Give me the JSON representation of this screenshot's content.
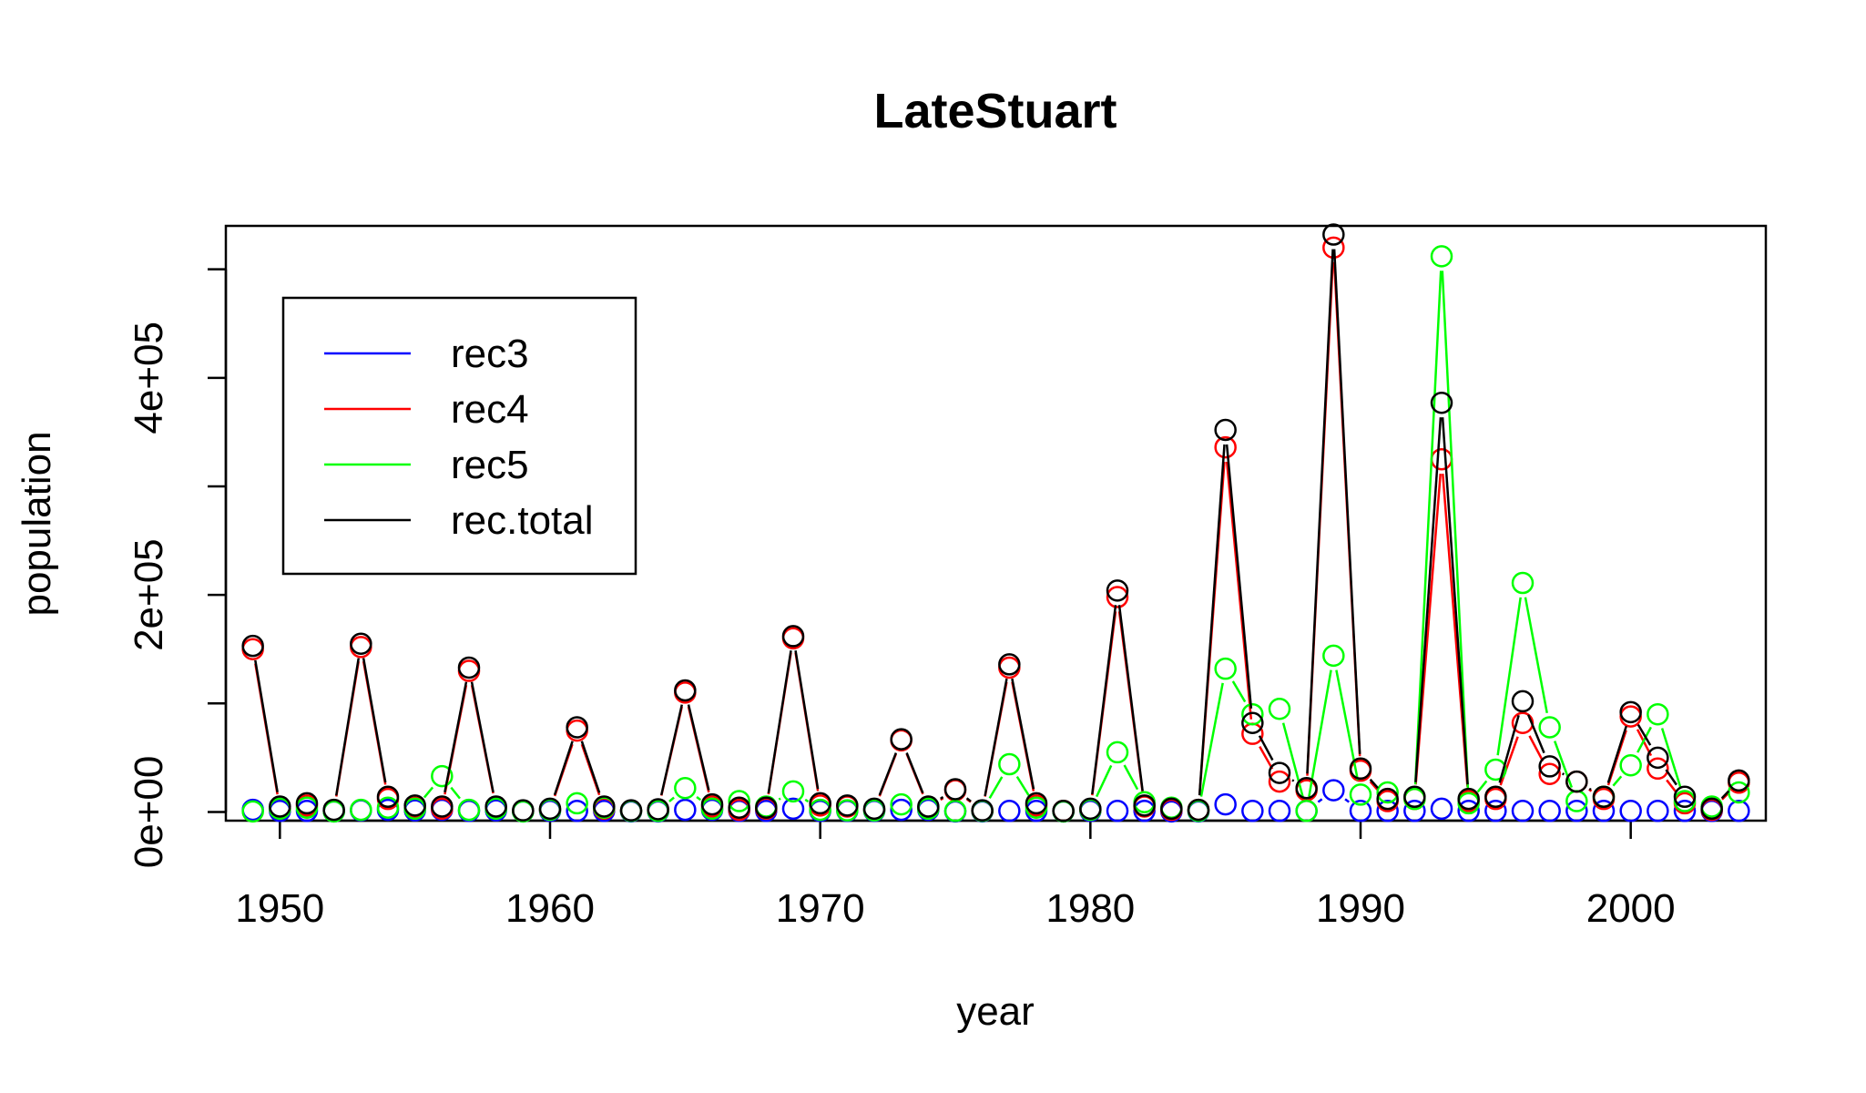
{
  "chart_data": {
    "type": "line",
    "title": "LateStuart",
    "xlabel": "year",
    "ylabel": "population",
    "xlim": [
      1948,
      2005
    ],
    "ylim": [
      -8000,
      540000
    ],
    "xticks": [
      1950,
      1960,
      1970,
      1980,
      1990,
      2000
    ],
    "xtick_labels": [
      "1950",
      "1960",
      "1970",
      "1980",
      "1990",
      "2000"
    ],
    "yticks": [
      0,
      100000,
      200000,
      300000,
      400000,
      500000
    ],
    "ytick_labels": [
      "0e+00",
      "",
      "2e+05",
      "",
      "4e+05",
      ""
    ],
    "grid": false,
    "legend_position": "top-left",
    "x": [
      1949,
      1950,
      1951,
      1952,
      1953,
      1954,
      1955,
      1956,
      1957,
      1958,
      1959,
      1960,
      1961,
      1962,
      1963,
      1964,
      1965,
      1966,
      1967,
      1968,
      1969,
      1970,
      1971,
      1972,
      1973,
      1974,
      1975,
      1976,
      1977,
      1978,
      1979,
      1980,
      1981,
      1982,
      1983,
      1984,
      1985,
      1986,
      1987,
      1988,
      1989,
      1990,
      1991,
      1992,
      1993,
      1994,
      1995,
      1996,
      1997,
      1998,
      1999,
      2000,
      2001,
      2002,
      2003,
      2004
    ],
    "series": [
      {
        "name": "rec3",
        "color": "#0000ff",
        "values": [
          2000,
          1000,
          1000,
          500,
          1500,
          2000,
          1500,
          2000,
          1000,
          1500,
          500,
          1000,
          1000,
          1000,
          500,
          500,
          2000,
          2000,
          1000,
          1000,
          3000,
          1000,
          1000,
          1000,
          2000,
          2000,
          500,
          500,
          1000,
          1000,
          500,
          1000,
          1000,
          1000,
          500,
          500,
          7000,
          1000,
          1000,
          1000,
          20000,
          1000,
          1000,
          1000,
          3000,
          1000,
          1000,
          1000,
          1000,
          1000,
          1000,
          1000,
          1000,
          1000,
          1000,
          1000
        ]
      },
      {
        "name": "rec4",
        "color": "#ff0000",
        "values": [
          150000,
          3000,
          6000,
          1000,
          152000,
          12000,
          4000,
          3000,
          130000,
          4000,
          1000,
          2000,
          75000,
          3000,
          1000,
          2000,
          110000,
          5000,
          2000,
          3000,
          160000,
          6000,
          5000,
          2000,
          66000,
          4000,
          20000,
          1000,
          133000,
          6000,
          1000,
          2000,
          198000,
          5000,
          2000,
          2000,
          336000,
          72000,
          28000,
          20000,
          520000,
          38000,
          10000,
          12000,
          325000,
          10000,
          12000,
          82000,
          35000,
          28000,
          12000,
          88000,
          40000,
          8000,
          2000,
          27000
        ]
      },
      {
        "name": "rec5",
        "color": "#00ff00",
        "values": [
          500,
          3000,
          4000,
          500,
          2000,
          4000,
          3000,
          33000,
          2000,
          3000,
          500,
          2000,
          8000,
          4000,
          1000,
          1000,
          22000,
          3000,
          10000,
          5000,
          19000,
          2000,
          1500,
          1500,
          7000,
          3000,
          1000,
          1000,
          44000,
          4000,
          500,
          2000,
          55000,
          9000,
          4000,
          1000,
          132000,
          90000,
          95000,
          1000,
          144000,
          16000,
          18000,
          12000,
          512000,
          8000,
          39000,
          211000,
          78000,
          10000,
          14000,
          43000,
          90000,
          10000,
          5000,
          18000
        ]
      },
      {
        "name": "rec.total",
        "color": "#000000",
        "values": [
          153000,
          5000,
          8000,
          2000,
          155000,
          14000,
          6000,
          5000,
          133000,
          5000,
          1500,
          3000,
          78000,
          5000,
          1500,
          2500,
          112000,
          7000,
          4000,
          4000,
          162000,
          8000,
          6000,
          3000,
          67000,
          5000,
          21000,
          1500,
          136000,
          8000,
          1000,
          3000,
          204000,
          6000,
          3000,
          2000,
          352000,
          82000,
          36000,
          22000,
          532000,
          40000,
          12000,
          14000,
          377000,
          12000,
          14000,
          102000,
          42000,
          28000,
          14000,
          92000,
          50000,
          14000,
          3000,
          29000
        ]
      }
    ]
  }
}
